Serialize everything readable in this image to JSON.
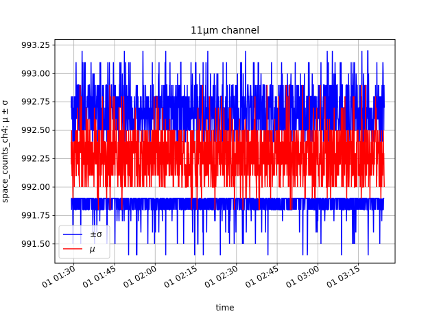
{
  "chart_data": {
    "type": "line",
    "title": "11μm channel",
    "xlabel": "time",
    "ylabel": "space_counts_ch4: μ ± σ",
    "x_tick_labels": [
      "01 01:30",
      "01 01:45",
      "01 02:00",
      "01 02:15",
      "01 02:30",
      "01 02:45",
      "01 03:00",
      "01 03:15"
    ],
    "y_tick_labels": [
      "991.50",
      "991.75",
      "992.00",
      "992.25",
      "992.50",
      "992.75",
      "993.00",
      "993.25"
    ],
    "y_ticks": [
      991.5,
      991.75,
      992.0,
      992.25,
      992.5,
      992.75,
      993.0,
      993.25
    ],
    "ylim": [
      991.33,
      993.3
    ],
    "xlim": [
      "01:23:00",
      "03:28:30"
    ],
    "x_range_data": [
      "01:29:00",
      "03:24:30"
    ],
    "grid": true,
    "legend_position": "lower-left",
    "series": [
      {
        "name": "±σ",
        "color": "#0000ff",
        "upper_band": {
          "typical_low": 992.4,
          "typical_high": 992.9,
          "peak_max": 993.2
        },
        "lower_band": {
          "typical_low": 991.8,
          "typical_high": 991.95,
          "trough_min": 991.4
        }
      },
      {
        "name": "μ",
        "color": "#ff0000",
        "typical_low": 992.0,
        "typical_high": 992.55,
        "peak_max": 992.9,
        "trough_min": 991.8
      }
    ]
  }
}
